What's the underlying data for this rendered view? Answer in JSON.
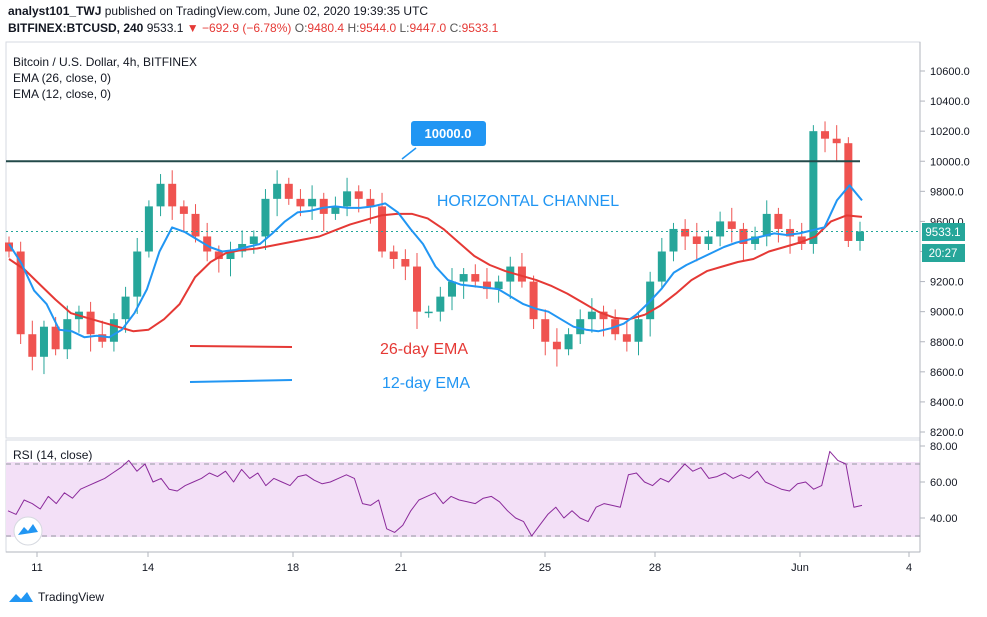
{
  "header": {
    "publisher": "analyst101_TWJ",
    "published_text": "published on TradingView.com, June 02, 2020 19:39:35 UTC",
    "symbol": "BITFINEX:BTCUSD, 240",
    "price": "9533.1",
    "change": "−692.9 (−6.78%)",
    "o_label": "O:",
    "o_value": "9480.4",
    "h_label": "H:",
    "h_value": "9544.0",
    "l_label": "L:",
    "l_value": "9447.0",
    "c_label": "C:",
    "c_value": "9533.1"
  },
  "legend": {
    "title": "Bitcoin / U.S. Dollar, 4h, BITFINEX",
    "ema26": "EMA (26, close, 0)",
    "ema12": "EMA (12, close, 0)",
    "rsi": "RSI (14, close)"
  },
  "annotations": {
    "level_label": "10000.0",
    "channel": "HORIZONTAL CHANNEL",
    "ema26_label": "26-day EMA",
    "ema12_label": "12-day EMA"
  },
  "price_tag": "9533.1",
  "countdown": "20:27",
  "footer": {
    "brand": "TradingView"
  },
  "colors": {
    "up": "#26a69a",
    "down": "#ef5350",
    "ema12": "#2196f3",
    "ema26": "#e53935",
    "channel_line": "#234a4a",
    "rsi_line": "#8b2a9b",
    "rsi_band": "#f3e0f7",
    "accent": "#2196f3"
  },
  "chart_data": {
    "type": "candlestick",
    "y_axis": {
      "ticks": [
        8200,
        8400,
        8600,
        8800,
        9000,
        9200,
        9400,
        9600,
        9800,
        10000,
        10200,
        10400,
        10600
      ],
      "ylim": [
        8170,
        10700
      ]
    },
    "x_axis": {
      "ticks": [
        "11",
        "14",
        "18",
        "21",
        "25",
        "28",
        "Jun",
        "4"
      ]
    },
    "horizontal_level": 10000,
    "close": [
      9400,
      8850,
      8700,
      8900,
      8750,
      8950,
      9000,
      8850,
      8800,
      8950,
      9100,
      9400,
      9700,
      9850,
      9700,
      9650,
      9500,
      9400,
      9350,
      9400,
      9450,
      9500,
      9750,
      9850,
      9750,
      9700,
      9750,
      9650,
      9700,
      9800,
      9750,
      9700,
      9400,
      9350,
      9300,
      9000,
      9000,
      9100,
      9200,
      9250,
      9200,
      9150,
      9200,
      9300,
      9200,
      8950,
      8800,
      8750,
      8850,
      8950,
      9000,
      8950,
      8850,
      8800,
      8950,
      9200,
      9400,
      9550,
      9500,
      9450,
      9500,
      9600,
      9550,
      9450,
      9500,
      9650,
      9550,
      9500,
      9450,
      10200,
      10150,
      10120,
      9470,
      9533
    ],
    "ema12": [
      9450,
      9320,
      9140,
      9050,
      8880,
      8870,
      8830,
      8840,
      8830,
      8880,
      8990,
      9150,
      9400,
      9560,
      9530,
      9480,
      9430,
      9400,
      9410,
      9430,
      9450,
      9520,
      9600,
      9660,
      9670,
      9690,
      9700,
      9690,
      9690,
      9700,
      9720,
      9660,
      9550,
      9450,
      9300,
      9210,
      9180,
      9170,
      9160,
      9150,
      9100,
      9050,
      9020,
      9000,
      8950,
      8900,
      8880,
      8870,
      8890,
      8920,
      8980,
      9060,
      9150,
      9260,
      9310,
      9350,
      9390,
      9430,
      9460,
      9480,
      9500,
      9520,
      9510,
      9520,
      9540,
      9560,
      9740,
      9840,
      9740
    ],
    "ema26": [
      9350,
      9280,
      9180,
      9080,
      8990,
      8960,
      8930,
      8900,
      8870,
      8880,
      8950,
      9050,
      9230,
      9330,
      9390,
      9410,
      9420,
      9440,
      9460,
      9480,
      9500,
      9540,
      9580,
      9610,
      9640,
      9650,
      9650,
      9620,
      9550,
      9460,
      9370,
      9310,
      9270,
      9240,
      9210,
      9170,
      9120,
      9060,
      9000,
      8960,
      8950,
      8980,
      9040,
      9120,
      9210,
      9270,
      9300,
      9330,
      9350,
      9400,
      9430,
      9460,
      9500,
      9600,
      9640,
      9630
    ],
    "rsi": [
      44,
      42,
      50,
      48,
      45,
      52,
      48,
      54,
      51,
      56,
      58,
      60,
      62,
      65,
      68,
      72,
      66,
      70,
      60,
      62,
      56,
      55,
      58,
      60,
      62,
      65,
      63,
      66,
      60,
      67,
      62,
      65,
      58,
      62,
      60,
      58,
      63,
      64,
      61,
      59,
      60,
      62,
      64,
      62,
      48,
      47,
      50,
      34,
      32,
      36,
      44,
      50,
      52,
      54,
      48,
      52,
      50,
      49,
      48,
      51,
      52,
      49,
      44,
      40,
      38,
      30,
      36,
      42,
      46,
      40,
      44,
      40,
      38,
      46,
      48,
      47,
      46,
      64,
      65,
      60,
      58,
      62,
      60,
      65,
      70,
      66,
      68,
      62,
      63,
      65,
      62,
      64,
      62,
      66,
      60,
      58,
      56,
      55,
      59,
      60,
      56,
      58,
      77,
      72,
      70,
      46,
      47
    ],
    "rsi_levels": [
      70,
      30
    ],
    "rsi_y_axis": {
      "ticks": [
        40,
        60,
        80
      ],
      "ylim": [
        24,
        84
      ]
    }
  }
}
